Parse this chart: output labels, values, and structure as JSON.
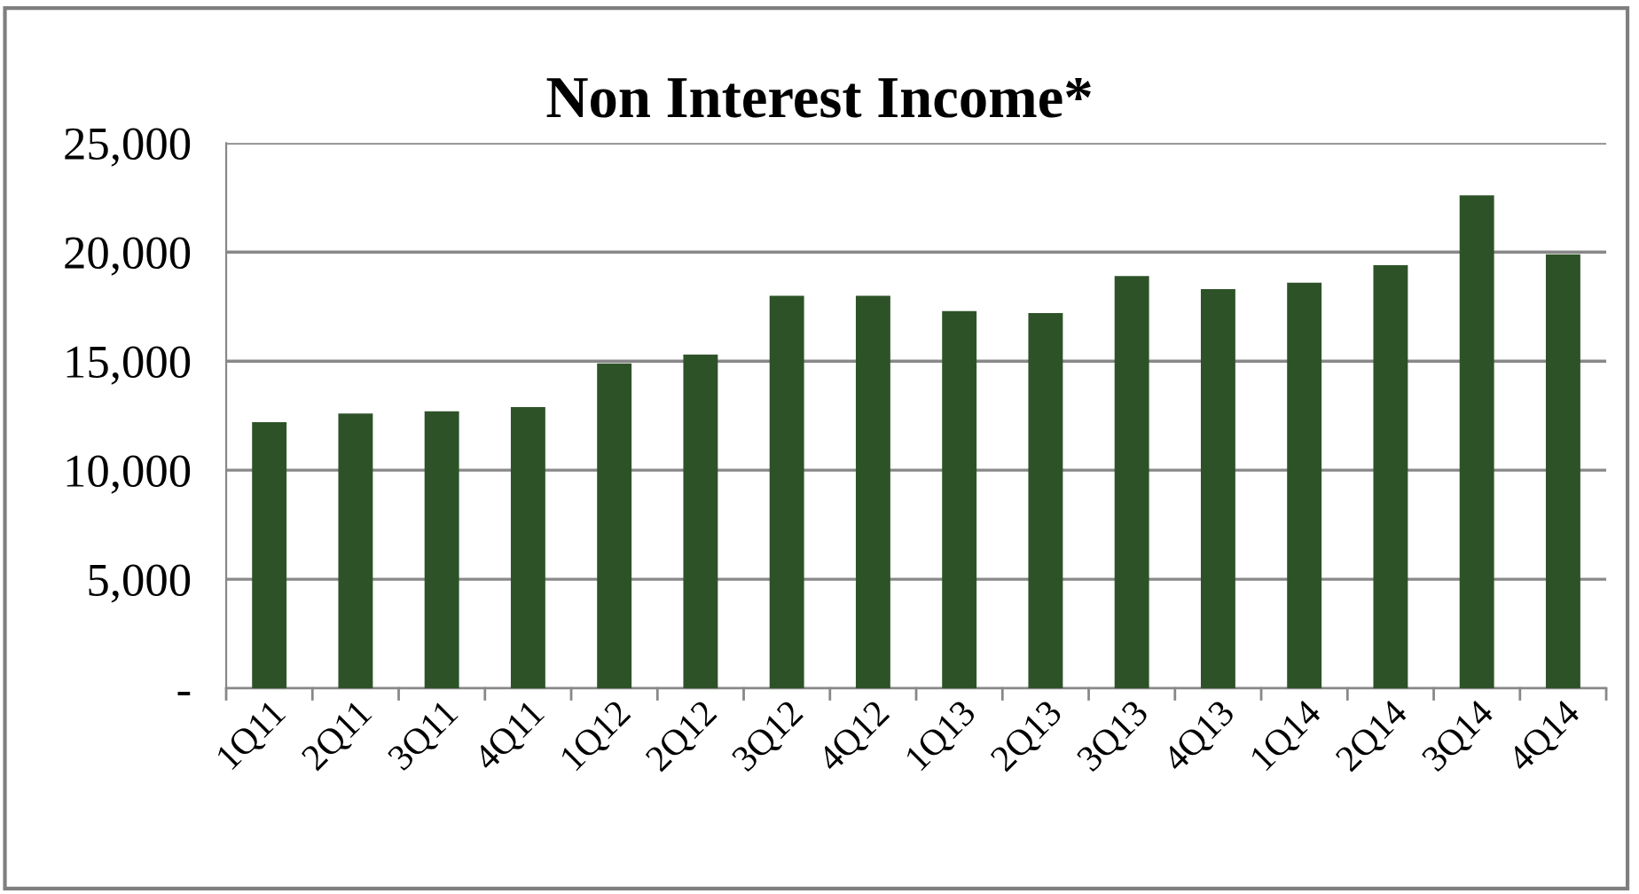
{
  "chart_data": {
    "type": "bar",
    "title": "Non Interest Income*",
    "categories": [
      "1Q11",
      "2Q11",
      "3Q11",
      "4Q11",
      "1Q12",
      "2Q12",
      "3Q12",
      "4Q12",
      "1Q13",
      "2Q13",
      "3Q13",
      "4Q13",
      "1Q14",
      "2Q14",
      "3Q14",
      "4Q14"
    ],
    "values": [
      12200,
      12600,
      12700,
      12900,
      14900,
      15300,
      18000,
      18000,
      17300,
      17200,
      18900,
      18300,
      18600,
      19400,
      22600,
      19900
    ],
    "color": "#2e5228",
    "ylim": [
      0,
      25000
    ],
    "yticks": [
      {
        "value": 0,
        "label": "-"
      },
      {
        "value": 5000,
        "label": "5,000"
      },
      {
        "value": 10000,
        "label": "10,000"
      },
      {
        "value": 15000,
        "label": "15,000"
      },
      {
        "value": 20000,
        "label": "20,000"
      },
      {
        "value": 25000,
        "label": "25,000"
      }
    ],
    "grid": "y",
    "legend": false
  }
}
